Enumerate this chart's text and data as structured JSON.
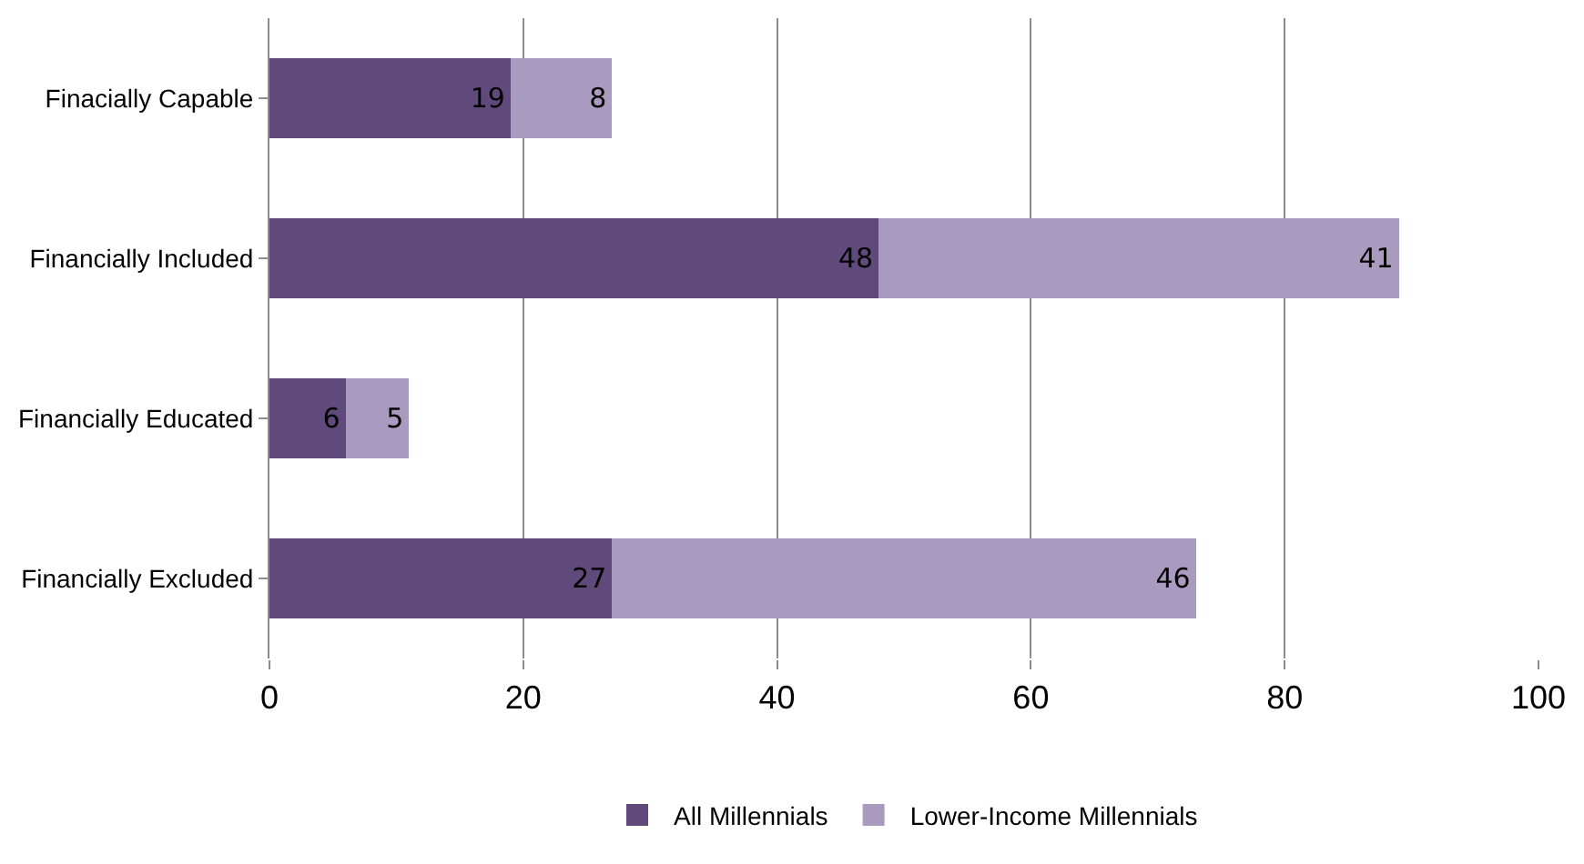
{
  "chart_data": {
    "type": "bar",
    "orientation": "horizontal",
    "stacked": true,
    "categories": [
      "Finacially Capable",
      "Financially Included",
      "Financially Educated",
      "Financially Excluded"
    ],
    "series": [
      {
        "name": "All Millennials",
        "color": "#604a7b",
        "values": [
          19,
          48,
          6,
          27
        ]
      },
      {
        "name": "Lower-Income Millennials",
        "color": "#a99bbf",
        "values": [
          8,
          41,
          5,
          46
        ]
      }
    ],
    "xlim": [
      0,
      100
    ],
    "xticks": [
      0,
      20,
      40,
      60,
      80,
      100
    ],
    "grid": "x",
    "legend": "bottom",
    "data_labels": true
  }
}
